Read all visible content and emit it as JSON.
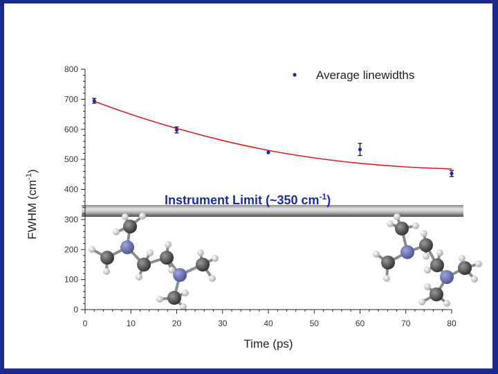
{
  "chart_data": {
    "type": "scatter",
    "title": "",
    "xlabel": "Time (ps)",
    "ylabel_main": "FWHM (cm",
    "ylabel_sup": "-1",
    "ylabel_end": ")",
    "xlim": [
      0,
      80
    ],
    "ylim": [
      0,
      800
    ],
    "x_ticks": [
      0,
      10,
      20,
      30,
      40,
      50,
      60,
      70,
      80
    ],
    "y_ticks": [
      0,
      100,
      200,
      300,
      400,
      500,
      600,
      700,
      800
    ],
    "grid": false,
    "legend_position": "top-right",
    "series": [
      {
        "name": "Average linewidths",
        "color": "#1a2a9a",
        "points": [
          {
            "x": 2,
            "y": 695,
            "err": 8
          },
          {
            "x": 20,
            "y": 598,
            "err": 10
          },
          {
            "x": 40,
            "y": 523,
            "err": 0
          },
          {
            "x": 60,
            "y": 533,
            "err": 20
          },
          {
            "x": 80,
            "y": 453,
            "err": 10
          }
        ]
      }
    ],
    "fit_curve": {
      "color": "#d42020",
      "points": [
        [
          2,
          693
        ],
        [
          10,
          650
        ],
        [
          20,
          603
        ],
        [
          30,
          563
        ],
        [
          40,
          530
        ],
        [
          50,
          505
        ],
        [
          60,
          487
        ],
        [
          70,
          475
        ],
        [
          80,
          468
        ]
      ]
    },
    "annotation": {
      "text_main": "Instrument Limit (~350 cm",
      "text_sup": "-1",
      "text_end": ")",
      "color": "#1a2aa6",
      "limit_value": 325
    },
    "molecule_icons": [
      "tmeda-molecule-left-icon",
      "tmeda-molecule-right-icon"
    ]
  }
}
